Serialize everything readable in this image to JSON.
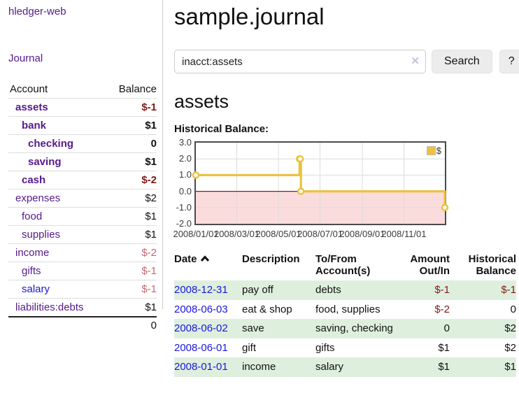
{
  "colors": {
    "link_purple": "#551a8b",
    "link_blue": "#1a16e0",
    "negative_red": "#801919",
    "negative_red_faded": "#c26770",
    "row_green": "#deefde",
    "chart_line_gold": "#edc240",
    "chart_negative_fill_pink": "#fbdcdc",
    "chart_zero_line_red": "#8b1a1a"
  },
  "sidebar": {
    "brand": "hledger-web",
    "nav_journal": "Journal",
    "header": {
      "account": "Account",
      "balance": "Balance"
    },
    "accounts": [
      {
        "name": "assets",
        "balance": "$-1"
      },
      {
        "name": "bank",
        "balance": "$1"
      },
      {
        "name": "checking",
        "balance": "0"
      },
      {
        "name": "saving",
        "balance": "$1"
      },
      {
        "name": "cash",
        "balance": "$-2"
      },
      {
        "name": "expenses",
        "balance": "$2"
      },
      {
        "name": "food",
        "balance": "$1"
      },
      {
        "name": "supplies",
        "balance": "$1"
      },
      {
        "name": "income",
        "balance": "$-2"
      },
      {
        "name": "gifts",
        "balance": "$-1"
      },
      {
        "name": "salary",
        "balance": "$-1"
      },
      {
        "name": "liabilities:debts",
        "balance": "$1"
      }
    ],
    "total": "0"
  },
  "main": {
    "title": "sample.journal",
    "search": {
      "value": "inacct:assets",
      "clear_icon": "✕",
      "search_button": "Search",
      "help_button": "?"
    },
    "account_heading": "assets",
    "chart_label": "Historical Balance:"
  },
  "chart_data": {
    "type": "line",
    "step": "after",
    "title": "Historical Balance:",
    "series": [
      {
        "name": "$",
        "color": "#edc240",
        "points": [
          [
            "2008-01-01",
            1
          ],
          [
            "2008-06-01",
            2
          ],
          [
            "2008-06-02",
            2
          ],
          [
            "2008-06-03",
            0
          ],
          [
            "2008-12-31",
            -1
          ]
        ]
      }
    ],
    "xlim": [
      "2008-01-01",
      "2008-12-31"
    ],
    "ylim": [
      -2,
      3
    ],
    "x_ticks": [
      "2008/01/01",
      "2008/03/01",
      "2008/05/01",
      "2008/07/01",
      "2008/09/01",
      "2008/11/01"
    ],
    "y_ticks": [
      "3.0",
      "2.0",
      "1.0",
      "0.0",
      "-1.0",
      "-2.0"
    ],
    "legend": {
      "label": "$",
      "position": "top-right"
    },
    "negative_region_shaded": true,
    "grid": true
  },
  "register": {
    "columns": [
      "Date",
      "Description",
      "To/From Account(s)",
      "Amount Out/In",
      "Historical Balance"
    ],
    "sorted_by": "Date ascending",
    "rows": [
      {
        "date": "2008-12-31",
        "description": "pay off",
        "accounts": "debts",
        "amount": "$-1",
        "balance": "$-1"
      },
      {
        "date": "2008-06-03",
        "description": "eat & shop",
        "accounts": "food, supplies",
        "amount": "$-2",
        "balance": "0"
      },
      {
        "date": "2008-06-02",
        "description": "save",
        "accounts": "saving, checking",
        "amount": "0",
        "balance": "$2"
      },
      {
        "date": "2008-06-01",
        "description": "gift",
        "accounts": "gifts",
        "amount": "$1",
        "balance": "$2"
      },
      {
        "date": "2008-01-01",
        "description": "income",
        "accounts": "salary",
        "amount": "$1",
        "balance": "$1"
      }
    ]
  }
}
